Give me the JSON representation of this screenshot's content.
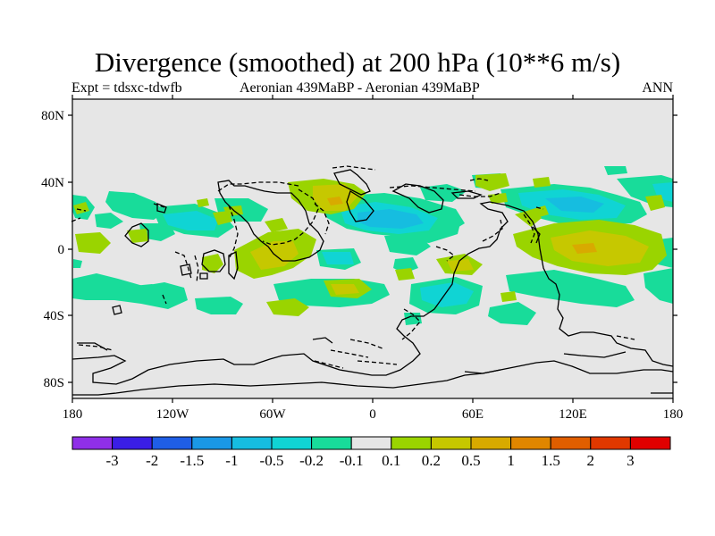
{
  "title": "Divergence (smoothed) at 200 hPa (10**6 m/s)",
  "subtitle": {
    "left": "Expt = tdsxc-tdwfb",
    "center": "Aeronian 439MaBP - Aeronian 439MaBP",
    "right": "ANN"
  },
  "lat_labels": [
    "80N",
    "40N",
    "0",
    "40S",
    "80S"
  ],
  "lon_labels": [
    "180",
    "120W",
    "60W",
    "0",
    "60E",
    "120E",
    "180"
  ],
  "colorbar": {
    "colors": [
      "#8f2fe8",
      "#3a1ee6",
      "#1f5ee6",
      "#1a98e6",
      "#16bde0",
      "#10d4d4",
      "#18dc9a",
      "#e6e6e6",
      "#9ad400",
      "#c6c800",
      "#d8aa00",
      "#e08600",
      "#e05e00",
      "#e03800",
      "#e00000"
    ],
    "labels": [
      "-3",
      "-2",
      "-1.5",
      "-1",
      "-0.5",
      "-0.2",
      "-0.1",
      "0.1",
      "0.2",
      "0.5",
      "1",
      "1.5",
      "2",
      "3"
    ]
  }
}
